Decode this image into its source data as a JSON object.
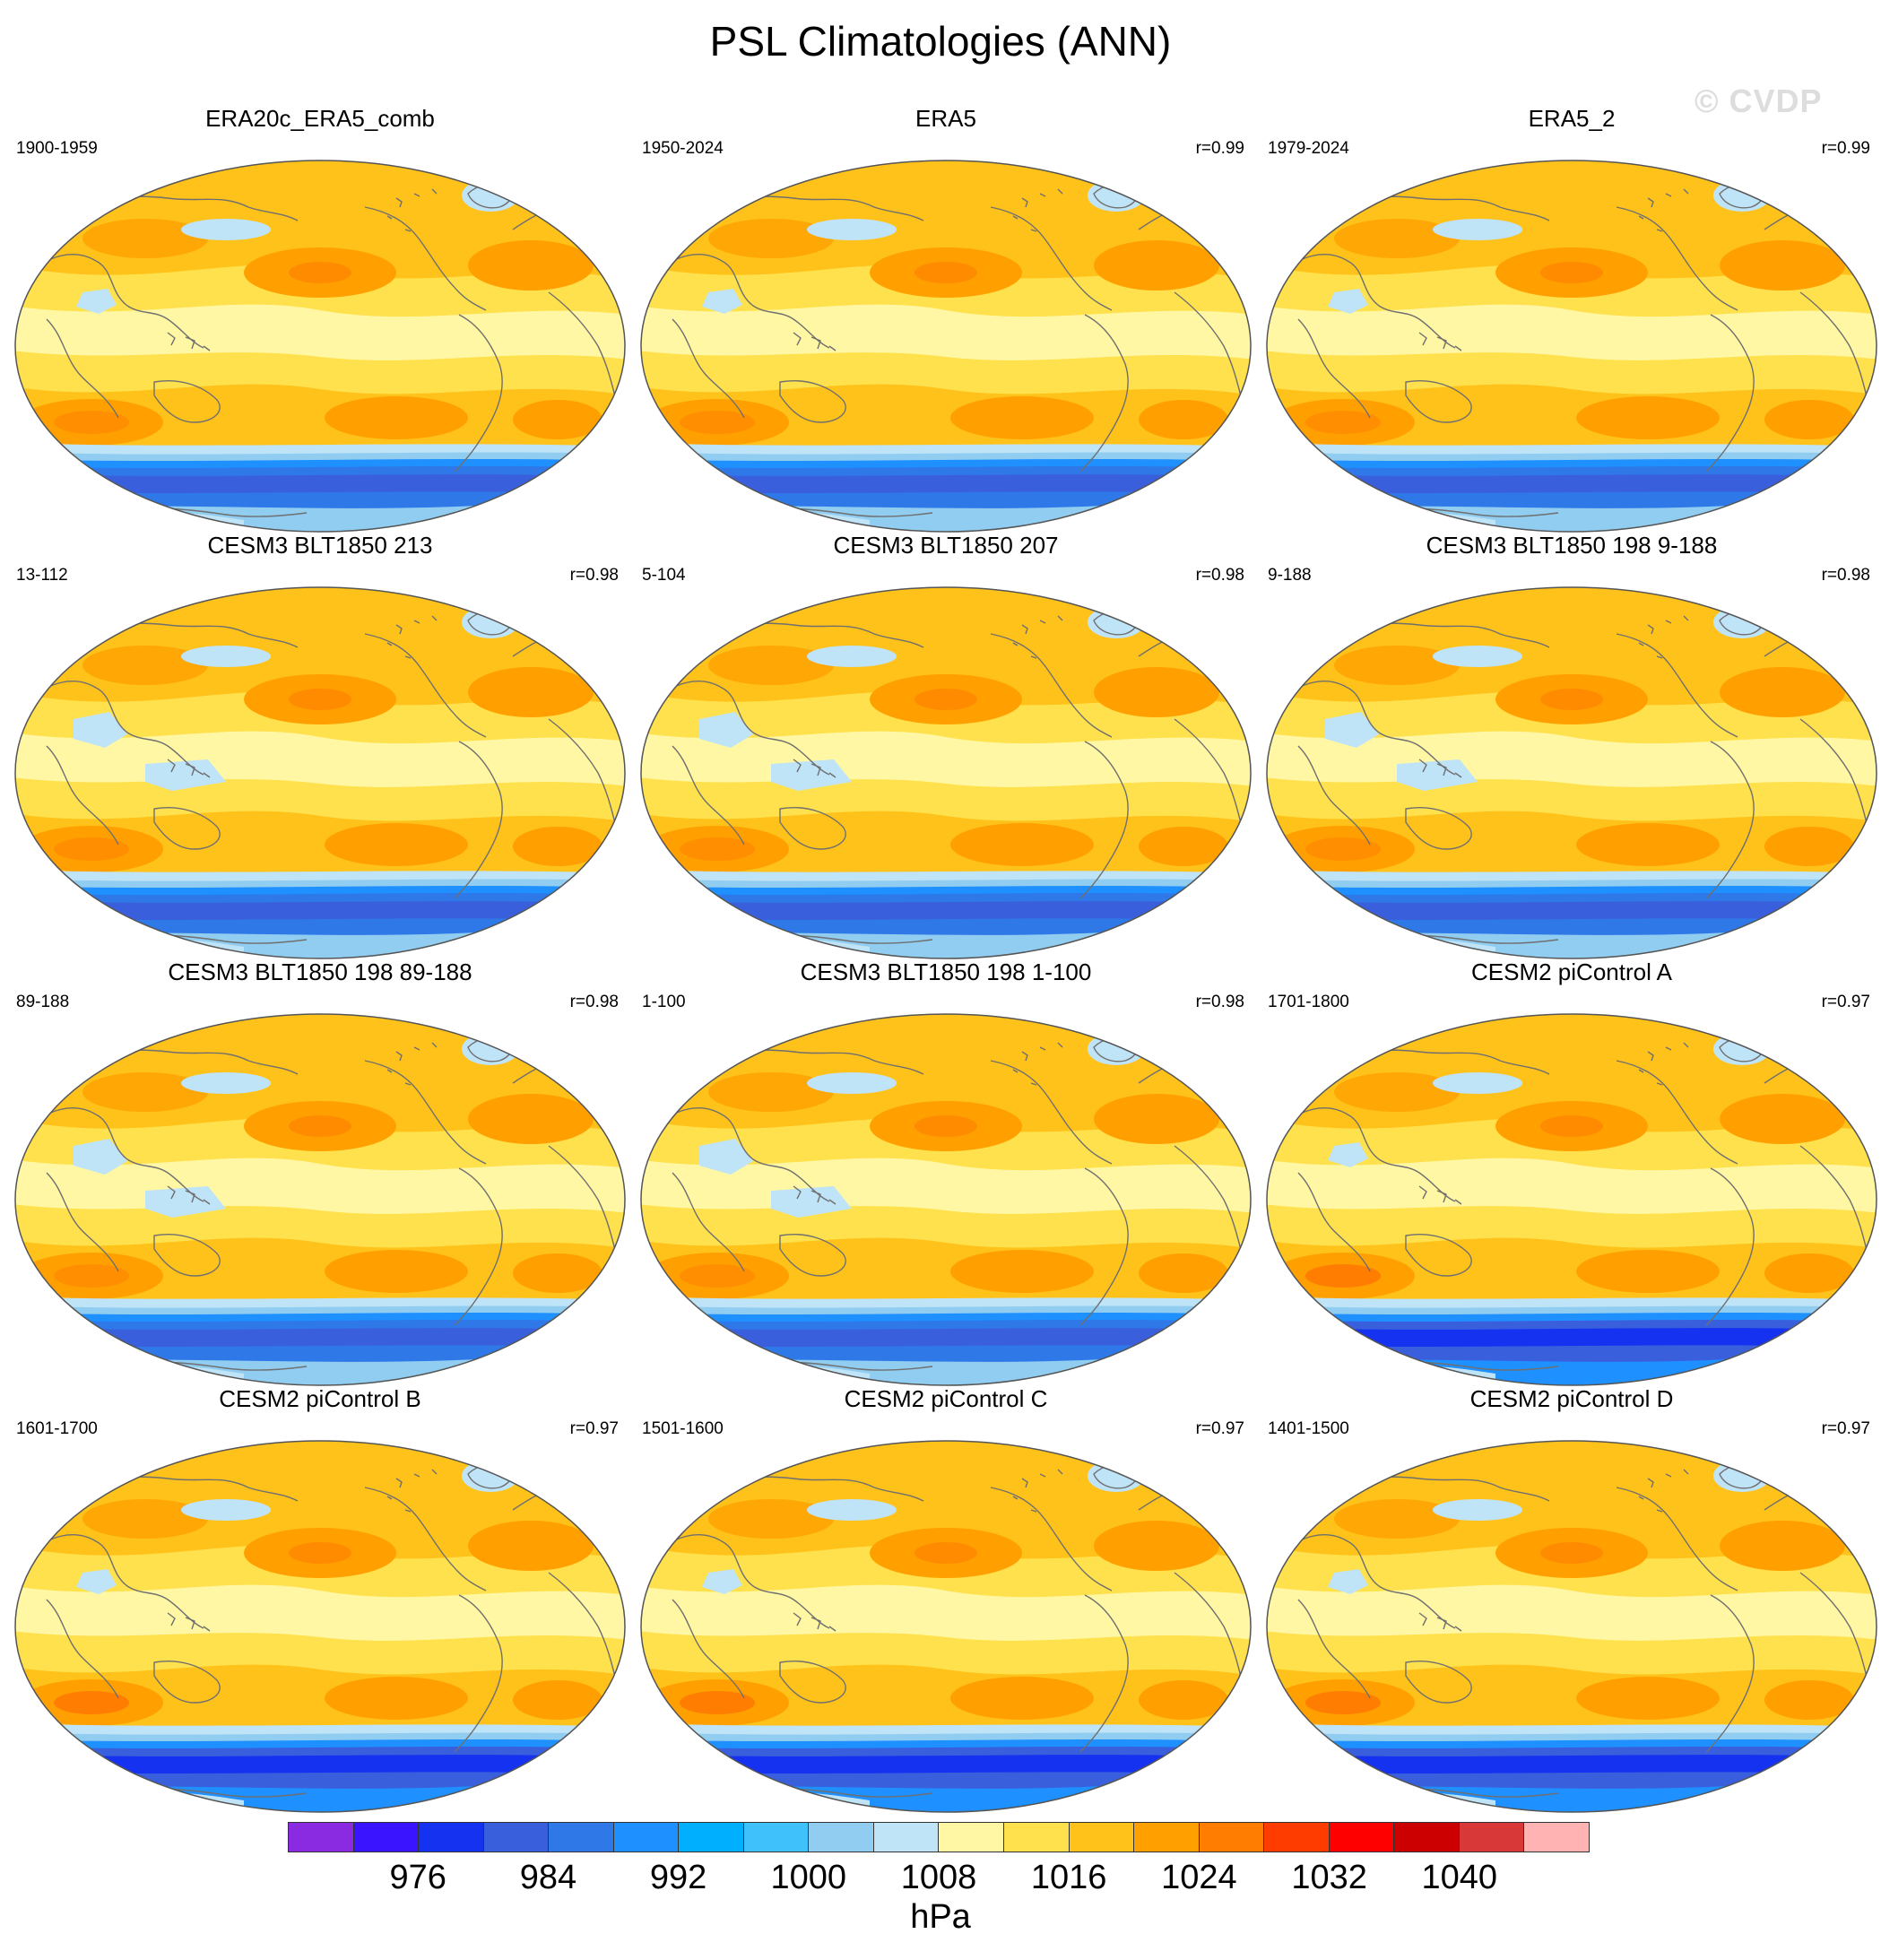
{
  "title": "PSL Climatologies (ANN)",
  "watermark": "© CVDP",
  "units": "hPa",
  "colors": {
    "coast": "#6f6f6f",
    "frame": "#555555",
    "bg_ocean": "#ffe14d"
  },
  "panels": [
    {
      "title": "ERA20c_ERA5_comb",
      "period": "1900-1959",
      "corr": "",
      "variant": 0
    },
    {
      "title": "ERA5",
      "period": "1950-2024",
      "corr": "r=0.99",
      "variant": 0
    },
    {
      "title": "ERA5_2",
      "period": "1979-2024",
      "corr": "r=0.99",
      "variant": 0
    },
    {
      "title": "CESM3 BLT1850 213",
      "period": "13-112",
      "corr": "r=0.98",
      "variant": 1
    },
    {
      "title": "CESM3 BLT1850 207",
      "period": "5-104",
      "corr": "r=0.98",
      "variant": 1
    },
    {
      "title": "CESM3 BLT1850 198 9-188",
      "period": "9-188",
      "corr": "r=0.98",
      "variant": 1
    },
    {
      "title": "CESM3 BLT1850 198 89-188",
      "period": "89-188",
      "corr": "r=0.98",
      "variant": 1
    },
    {
      "title": "CESM3 BLT1850 198 1-100",
      "period": "1-100",
      "corr": "r=0.98",
      "variant": 1
    },
    {
      "title": "CESM2 piControl A",
      "period": "1701-1800",
      "corr": "r=0.97",
      "variant": 2
    },
    {
      "title": "CESM2 piControl B",
      "period": "1601-1700",
      "corr": "r=0.97",
      "variant": 2
    },
    {
      "title": "CESM2 piControl C",
      "period": "1501-1600",
      "corr": "r=0.97",
      "variant": 2
    },
    {
      "title": "CESM2 piControl D",
      "period": "1401-1500",
      "corr": "r=0.97",
      "variant": 2
    }
  ],
  "colorbar": {
    "colors": [
      "#8a2be2",
      "#3a14ff",
      "#1432f0",
      "#3a5fdc",
      "#2f78e8",
      "#1e90ff",
      "#00b0ff",
      "#3fc1fb",
      "#90cdf0",
      "#bfe3f7",
      "#fff7a3",
      "#ffe14d",
      "#ffc21a",
      "#ffa000",
      "#ff7d00",
      "#ff3c00",
      "#ff0000",
      "#cc0000",
      "#d93838",
      "#ffb3b3"
    ],
    "labels": [
      "976",
      "984",
      "992",
      "1000",
      "1008",
      "1016",
      "1024",
      "1032",
      "1040"
    ]
  }
}
